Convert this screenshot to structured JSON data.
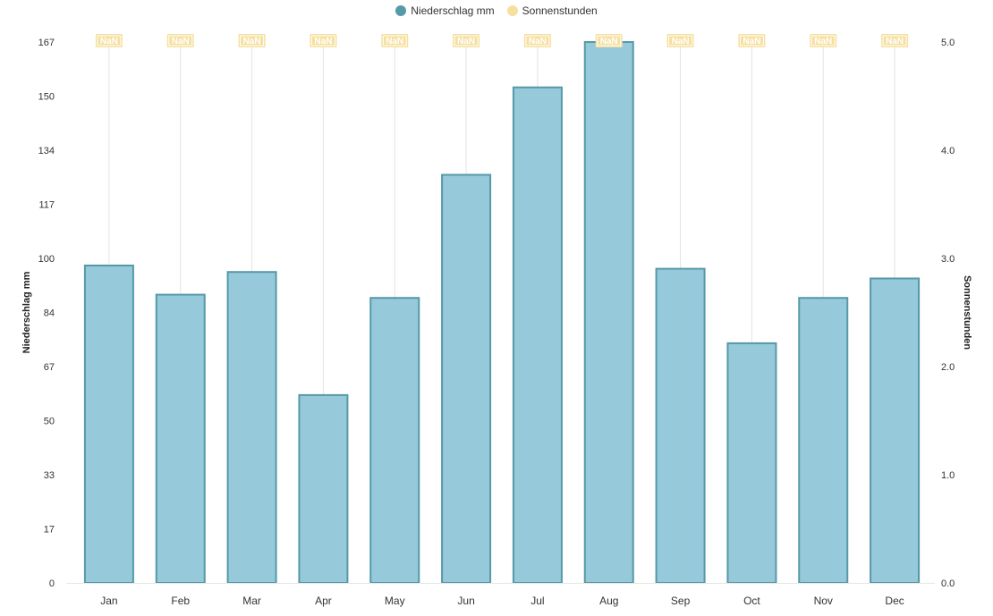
{
  "chart_data": {
    "type": "bar",
    "categories": [
      "Jan",
      "Feb",
      "Mar",
      "Apr",
      "May",
      "Jun",
      "Jul",
      "Aug",
      "Sep",
      "Oct",
      "Nov",
      "Dec"
    ],
    "series": [
      {
        "name": "Niederschlag mm",
        "type": "bar",
        "axis": "left",
        "values": [
          98,
          89,
          96,
          58,
          88,
          126,
          153,
          167,
          97,
          74,
          88,
          94
        ],
        "color": "#96c9da",
        "border_color": "#5699a8"
      },
      {
        "name": "Sonnenstunden",
        "type": "line",
        "axis": "right",
        "values": [
          null,
          null,
          null,
          null,
          null,
          null,
          null,
          null,
          null,
          null,
          null,
          null
        ],
        "data_labels": [
          "NaN",
          "NaN",
          "NaN",
          "NaN",
          "NaN",
          "NaN",
          "NaN",
          "NaN",
          "NaN",
          "NaN",
          "NaN",
          "NaN"
        ],
        "color": "#f6e0a0"
      }
    ],
    "y_left": {
      "label": "Niederschlag mm",
      "ticks": [
        "0",
        "17",
        "33",
        "50",
        "67",
        "84",
        "100",
        "117",
        "134",
        "150",
        "167"
      ],
      "ylim": [
        0,
        167
      ]
    },
    "y_right": {
      "label": "Sonnenstunden",
      "ticks": [
        "0.0",
        "1.0",
        "2.0",
        "3.0",
        "4.0",
        "5.0"
      ],
      "ylim": [
        0,
        5
      ]
    },
    "grid": "vertical",
    "legend_position": "top-center"
  }
}
